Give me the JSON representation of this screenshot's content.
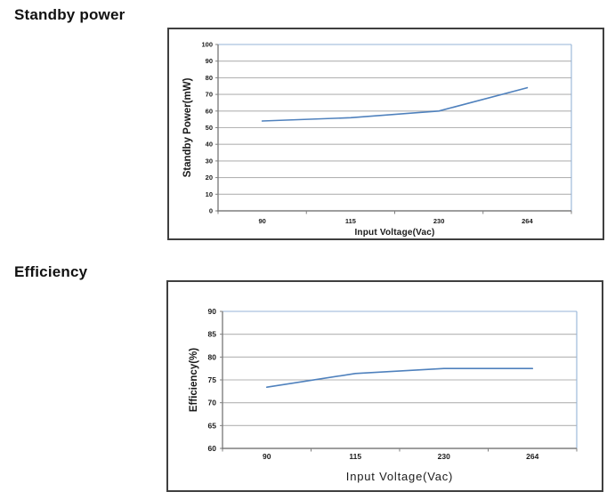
{
  "sections": [
    {
      "heading": "Standby power"
    },
    {
      "heading": "Efficiency"
    }
  ],
  "chart_data": [
    {
      "type": "line",
      "title": "Standby power",
      "categories": [
        "90",
        "115",
        "230",
        "264"
      ],
      "series": [
        {
          "name": "Standby Power",
          "values": [
            54,
            56,
            60,
            74
          ]
        }
      ],
      "xlabel": "Input Voltage(Vac)",
      "ylabel": "Standby Power(mW)",
      "ylim": [
        0,
        100
      ],
      "ystep": 10,
      "grid": true,
      "legend": "none",
      "colors": {
        "line": "#4f81bd",
        "gridline": "#b3b3b3",
        "axis": "#7f7f7f",
        "plot_border": "#95b3d7",
        "text": "#1a1a1a",
        "frame": "#3f3f3f"
      }
    },
    {
      "type": "line",
      "title": "Efficiency",
      "categories": [
        "90",
        "115",
        "230",
        "264"
      ],
      "series": [
        {
          "name": "Efficiency",
          "values": [
            73.4,
            76.4,
            77.5,
            77.5
          ]
        }
      ],
      "xlabel": "Input Voltage(Vac)",
      "ylabel": "Efficiency(%)",
      "ylim": [
        60,
        90
      ],
      "ystep": 5,
      "grid": true,
      "legend": "none",
      "colors": {
        "line": "#4f81bd",
        "gridline": "#b3b3b3",
        "axis": "#7f7f7f",
        "plot_border": "#95b3d7",
        "text": "#1a1a1a",
        "frame": "#3f3f3f"
      }
    }
  ]
}
